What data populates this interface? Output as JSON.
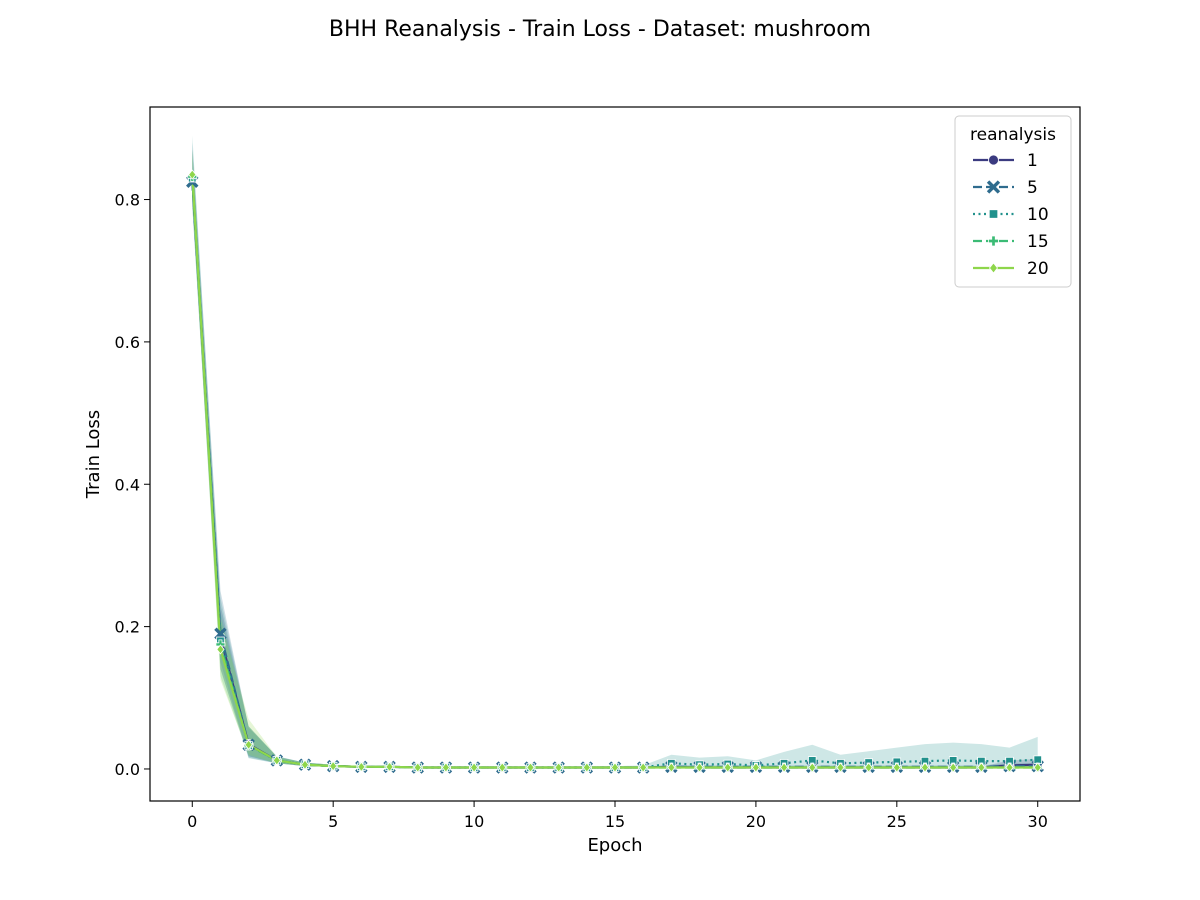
{
  "chart_data": {
    "type": "line",
    "title": "BHH Reanalysis - Train Loss - Dataset: mushroom",
    "xlabel": "Epoch",
    "ylabel": "Train Loss",
    "xlim": [
      -1.5,
      31.5
    ],
    "ylim": [
      -0.045,
      0.93
    ],
    "xticks": [
      0,
      5,
      10,
      15,
      20,
      25,
      30
    ],
    "yticks": [
      0.0,
      0.2,
      0.4,
      0.6,
      0.8
    ],
    "ytick_labels": [
      "0.0",
      "0.2",
      "0.4",
      "0.6",
      "0.8"
    ],
    "grid": false,
    "legend": {
      "title": "reanalysis",
      "placement": "top-right"
    },
    "x": [
      0,
      1,
      2,
      3,
      4,
      5,
      6,
      7,
      8,
      9,
      10,
      11,
      12,
      13,
      14,
      15,
      16,
      17,
      18,
      19,
      20,
      21,
      22,
      23,
      24,
      25,
      26,
      27,
      28,
      29,
      30
    ],
    "series": [
      {
        "name": "1",
        "color": "#3b3b80",
        "dash": "solid",
        "marker": "circle",
        "values": [
          0.83,
          0.185,
          0.035,
          0.012,
          0.006,
          0.004,
          0.003,
          0.003,
          0.002,
          0.002,
          0.002,
          0.002,
          0.002,
          0.002,
          0.002,
          0.002,
          0.002,
          0.003,
          0.002,
          0.002,
          0.002,
          0.002,
          0.002,
          0.002,
          0.002,
          0.002,
          0.002,
          0.002,
          0.002,
          0.005,
          0.006
        ],
        "lower": [
          0.8,
          0.14,
          0.018,
          0.008,
          0.004,
          0.003,
          0.002,
          0.002,
          0.001,
          0.001,
          0.001,
          0.001,
          0.001,
          0.001,
          0.001,
          0.001,
          0.001,
          0.001,
          0.001,
          0.001,
          0.001,
          0.001,
          0.001,
          0.001,
          0.001,
          0.001,
          0.001,
          0.001,
          0.001,
          0.001,
          0.001
        ],
        "upper": [
          0.87,
          0.23,
          0.06,
          0.017,
          0.009,
          0.006,
          0.004,
          0.004,
          0.003,
          0.003,
          0.003,
          0.003,
          0.003,
          0.003,
          0.003,
          0.003,
          0.003,
          0.005,
          0.003,
          0.003,
          0.003,
          0.003,
          0.003,
          0.003,
          0.003,
          0.003,
          0.003,
          0.003,
          0.003,
          0.012,
          0.014
        ]
      },
      {
        "name": "5",
        "color": "#2f6c8e",
        "dash": "dashed",
        "marker": "x",
        "values": [
          0.825,
          0.19,
          0.034,
          0.012,
          0.006,
          0.004,
          0.003,
          0.003,
          0.002,
          0.002,
          0.002,
          0.002,
          0.002,
          0.002,
          0.002,
          0.002,
          0.002,
          0.003,
          0.003,
          0.003,
          0.003,
          0.003,
          0.003,
          0.003,
          0.003,
          0.003,
          0.003,
          0.003,
          0.003,
          0.004,
          0.004
        ],
        "lower": [
          0.79,
          0.15,
          0.016,
          0.008,
          0.004,
          0.003,
          0.002,
          0.002,
          0.001,
          0.001,
          0.001,
          0.001,
          0.001,
          0.001,
          0.001,
          0.001,
          0.001,
          0.001,
          0.001,
          0.001,
          0.001,
          0.001,
          0.001,
          0.001,
          0.001,
          0.001,
          0.001,
          0.001,
          0.001,
          0.001,
          0.001
        ],
        "upper": [
          0.88,
          0.25,
          0.058,
          0.018,
          0.009,
          0.006,
          0.004,
          0.004,
          0.003,
          0.003,
          0.003,
          0.003,
          0.003,
          0.003,
          0.003,
          0.003,
          0.003,
          0.006,
          0.005,
          0.005,
          0.005,
          0.005,
          0.005,
          0.005,
          0.005,
          0.005,
          0.005,
          0.005,
          0.005,
          0.008,
          0.008
        ]
      },
      {
        "name": "10",
        "color": "#21918c",
        "dash": "dotted",
        "marker": "square",
        "values": [
          0.83,
          0.18,
          0.033,
          0.012,
          0.006,
          0.004,
          0.003,
          0.003,
          0.002,
          0.002,
          0.002,
          0.002,
          0.002,
          0.002,
          0.002,
          0.002,
          0.002,
          0.008,
          0.006,
          0.007,
          0.005,
          0.008,
          0.012,
          0.008,
          0.009,
          0.01,
          0.011,
          0.012,
          0.011,
          0.011,
          0.013
        ],
        "lower": [
          0.79,
          0.14,
          0.015,
          0.008,
          0.004,
          0.003,
          0.002,
          0.002,
          0.001,
          0.001,
          0.001,
          0.001,
          0.001,
          0.001,
          0.001,
          0.001,
          0.001,
          0.001,
          0.001,
          0.001,
          0.001,
          0.001,
          0.001,
          0.001,
          0.001,
          0.001,
          0.001,
          0.001,
          0.001,
          0.001,
          0.001
        ],
        "upper": [
          0.89,
          0.24,
          0.06,
          0.018,
          0.009,
          0.006,
          0.004,
          0.004,
          0.003,
          0.003,
          0.003,
          0.003,
          0.003,
          0.003,
          0.003,
          0.004,
          0.005,
          0.02,
          0.016,
          0.018,
          0.012,
          0.024,
          0.034,
          0.02,
          0.025,
          0.03,
          0.035,
          0.037,
          0.035,
          0.03,
          0.045
        ]
      },
      {
        "name": "15",
        "color": "#3bbb75",
        "dash": "dashed",
        "marker": "plus",
        "values": [
          0.832,
          0.175,
          0.033,
          0.012,
          0.006,
          0.004,
          0.003,
          0.003,
          0.002,
          0.002,
          0.002,
          0.002,
          0.002,
          0.002,
          0.002,
          0.002,
          0.002,
          0.002,
          0.002,
          0.002,
          0.002,
          0.002,
          0.002,
          0.002,
          0.002,
          0.002,
          0.002,
          0.002,
          0.002,
          0.002,
          0.002
        ],
        "lower": [
          0.8,
          0.13,
          0.018,
          0.008,
          0.004,
          0.003,
          0.002,
          0.002,
          0.001,
          0.001,
          0.001,
          0.001,
          0.001,
          0.001,
          0.001,
          0.001,
          0.001,
          0.001,
          0.001,
          0.001,
          0.001,
          0.001,
          0.001,
          0.001,
          0.001,
          0.001,
          0.001,
          0.001,
          0.001,
          0.001,
          0.001
        ],
        "upper": [
          0.87,
          0.22,
          0.06,
          0.017,
          0.009,
          0.006,
          0.004,
          0.004,
          0.003,
          0.003,
          0.003,
          0.003,
          0.003,
          0.003,
          0.003,
          0.003,
          0.003,
          0.004,
          0.003,
          0.003,
          0.003,
          0.003,
          0.003,
          0.003,
          0.003,
          0.003,
          0.003,
          0.003,
          0.003,
          0.003,
          0.003
        ]
      },
      {
        "name": "20",
        "color": "#8ed64b",
        "dash": "solid",
        "marker": "diamond",
        "values": [
          0.835,
          0.168,
          0.034,
          0.012,
          0.006,
          0.004,
          0.003,
          0.003,
          0.002,
          0.002,
          0.002,
          0.002,
          0.002,
          0.002,
          0.002,
          0.002,
          0.002,
          0.002,
          0.002,
          0.002,
          0.002,
          0.002,
          0.002,
          0.002,
          0.002,
          0.002,
          0.002,
          0.002,
          0.002,
          0.002,
          0.002
        ],
        "lower": [
          0.8,
          0.125,
          0.02,
          0.008,
          0.004,
          0.003,
          0.002,
          0.002,
          0.001,
          0.001,
          0.001,
          0.001,
          0.001,
          0.001,
          0.001,
          0.001,
          0.001,
          0.001,
          0.001,
          0.001,
          0.001,
          0.001,
          0.001,
          0.001,
          0.001,
          0.001,
          0.001,
          0.001,
          0.001,
          0.001,
          0.001
        ],
        "upper": [
          0.87,
          0.21,
          0.07,
          0.017,
          0.009,
          0.006,
          0.004,
          0.004,
          0.003,
          0.003,
          0.003,
          0.003,
          0.003,
          0.003,
          0.003,
          0.003,
          0.003,
          0.003,
          0.003,
          0.003,
          0.003,
          0.003,
          0.003,
          0.003,
          0.003,
          0.003,
          0.003,
          0.003,
          0.003,
          0.003,
          0.003
        ]
      }
    ]
  }
}
